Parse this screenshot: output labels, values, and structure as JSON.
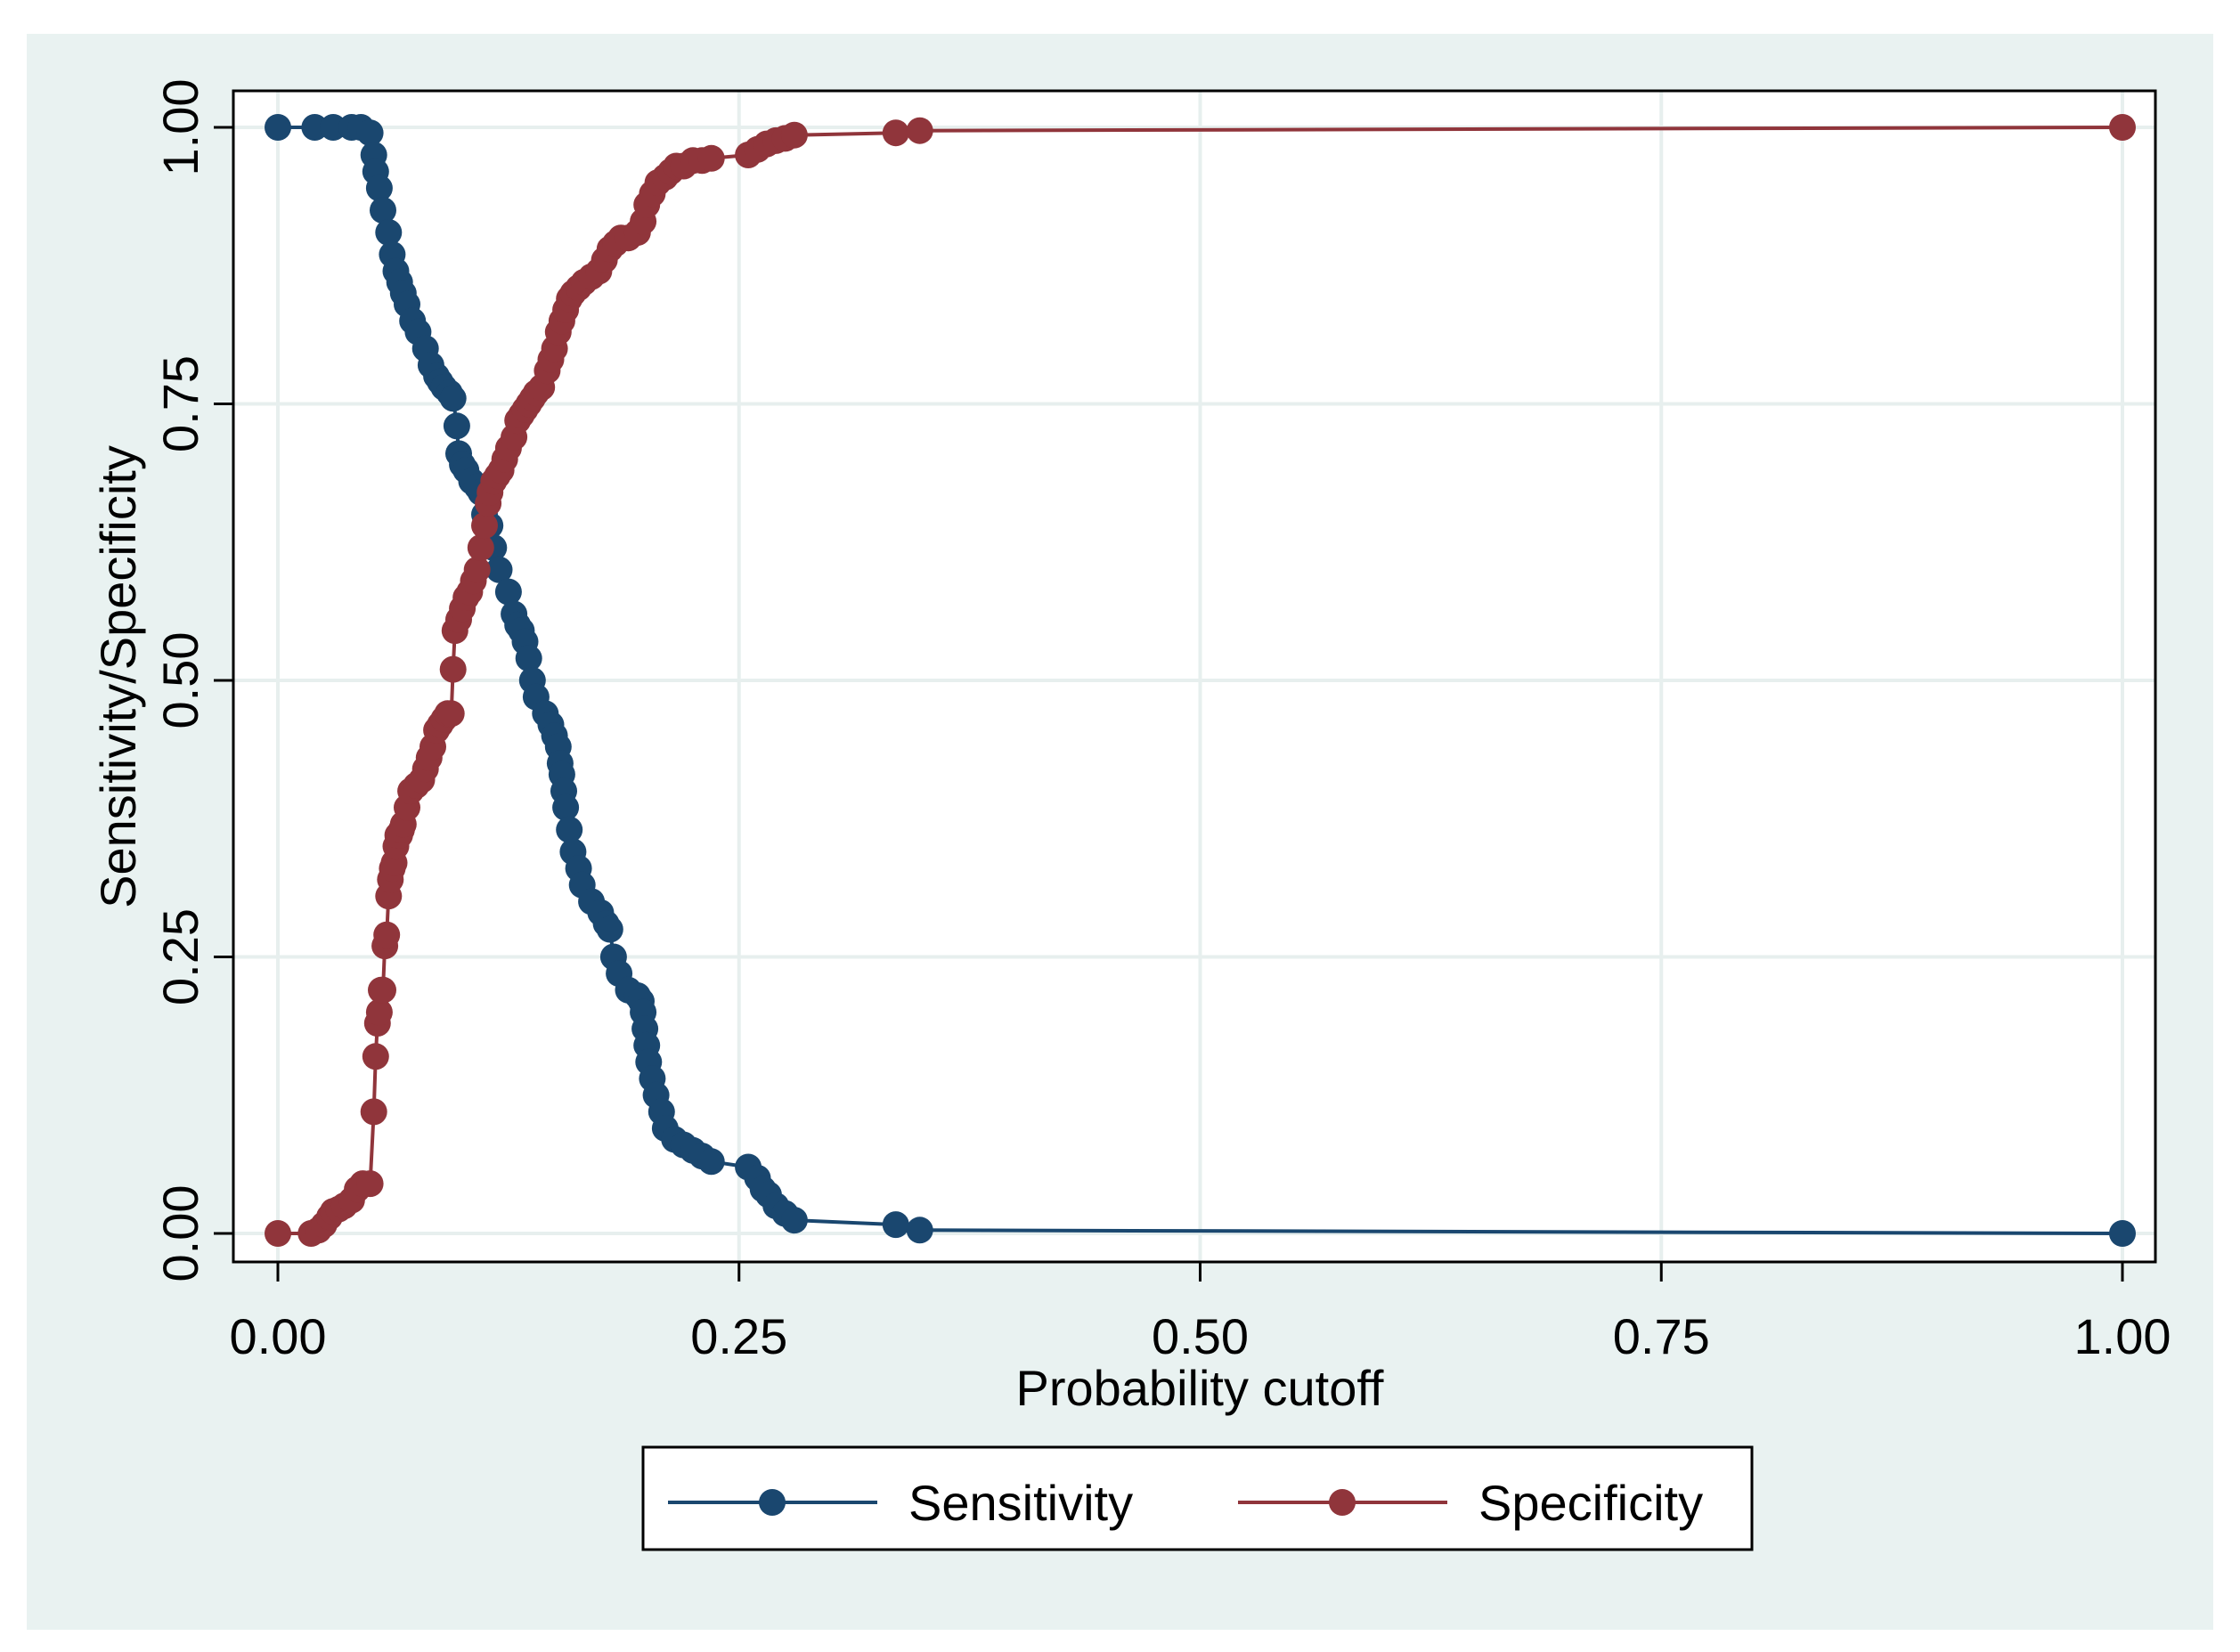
{
  "chart_data": {
    "type": "line",
    "title": "",
    "xlabel": "Probability cutoff",
    "ylabel": "Sensitivity/Specificity",
    "xlim": [
      0,
      1
    ],
    "ylim": [
      0,
      1
    ],
    "x_ticks": [
      "0.00",
      "0.25",
      "0.50",
      "0.75",
      "1.00"
    ],
    "y_ticks": [
      "0.00",
      "0.25",
      "0.50",
      "0.75",
      "1.00"
    ],
    "grid": true,
    "legend_position": "bottom",
    "series": [
      {
        "name": "Sensitivity",
        "color": "#1a476f",
        "marker": "circle",
        "x": [
          0.0,
          0.02,
          0.03,
          0.04,
          0.045,
          0.05,
          0.052,
          0.053,
          0.055,
          0.057,
          0.06,
          0.062,
          0.064,
          0.066,
          0.068,
          0.07,
          0.073,
          0.076,
          0.08,
          0.083,
          0.086,
          0.088,
          0.09,
          0.093,
          0.095,
          0.097,
          0.098,
          0.1,
          0.102,
          0.105,
          0.108,
          0.11,
          0.112,
          0.115,
          0.117,
          0.12,
          0.125,
          0.128,
          0.13,
          0.132,
          0.134,
          0.136,
          0.138,
          0.14,
          0.145,
          0.148,
          0.15,
          0.152,
          0.153,
          0.154,
          0.155,
          0.156,
          0.158,
          0.16,
          0.163,
          0.165,
          0.17,
          0.175,
          0.178,
          0.18,
          0.182,
          0.185,
          0.19,
          0.195,
          0.197,
          0.198,
          0.199,
          0.2,
          0.201,
          0.203,
          0.205,
          0.208,
          0.21,
          0.215,
          0.22,
          0.225,
          0.23,
          0.235,
          0.255,
          0.26,
          0.263,
          0.266,
          0.27,
          0.275,
          0.28,
          0.335,
          0.348,
          1.0
        ],
        "y": [
          1.0,
          1.0,
          1.0,
          1.0,
          1.0,
          0.995,
          0.975,
          0.96,
          0.945,
          0.925,
          0.905,
          0.885,
          0.87,
          0.86,
          0.85,
          0.84,
          0.825,
          0.815,
          0.8,
          0.785,
          0.775,
          0.77,
          0.765,
          0.76,
          0.755,
          0.73,
          0.705,
          0.695,
          0.69,
          0.68,
          0.675,
          0.67,
          0.65,
          0.64,
          0.62,
          0.6,
          0.58,
          0.56,
          0.55,
          0.545,
          0.535,
          0.52,
          0.5,
          0.485,
          0.47,
          0.46,
          0.45,
          0.44,
          0.425,
          0.415,
          0.4,
          0.385,
          0.365,
          0.345,
          0.33,
          0.315,
          0.3,
          0.29,
          0.28,
          0.275,
          0.25,
          0.235,
          0.22,
          0.215,
          0.21,
          0.2,
          0.185,
          0.17,
          0.155,
          0.14,
          0.125,
          0.11,
          0.095,
          0.085,
          0.08,
          0.075,
          0.07,
          0.065,
          0.06,
          0.05,
          0.04,
          0.035,
          0.025,
          0.018,
          0.012,
          0.008,
          0.003,
          0.0
        ]
      },
      {
        "name": "Specificity",
        "color": "#90353b",
        "marker": "circle",
        "x": [
          0.0,
          0.018,
          0.022,
          0.025,
          0.028,
          0.03,
          0.033,
          0.036,
          0.04,
          0.043,
          0.046,
          0.05,
          0.052,
          0.053,
          0.054,
          0.055,
          0.056,
          0.057,
          0.058,
          0.059,
          0.06,
          0.061,
          0.062,
          0.063,
          0.064,
          0.065,
          0.066,
          0.067,
          0.068,
          0.07,
          0.072,
          0.075,
          0.078,
          0.08,
          0.082,
          0.084,
          0.086,
          0.088,
          0.09,
          0.092,
          0.094,
          0.095,
          0.096,
          0.098,
          0.1,
          0.102,
          0.104,
          0.106,
          0.108,
          0.11,
          0.112,
          0.114,
          0.115,
          0.117,
          0.119,
          0.121,
          0.123,
          0.125,
          0.128,
          0.13,
          0.132,
          0.134,
          0.136,
          0.138,
          0.14,
          0.143,
          0.146,
          0.148,
          0.15,
          0.152,
          0.154,
          0.156,
          0.158,
          0.16,
          0.163,
          0.166,
          0.17,
          0.174,
          0.177,
          0.18,
          0.183,
          0.186,
          0.19,
          0.195,
          0.198,
          0.2,
          0.203,
          0.206,
          0.21,
          0.213,
          0.216,
          0.22,
          0.225,
          0.23,
          0.235,
          0.255,
          0.26,
          0.265,
          0.27,
          0.275,
          0.28,
          0.335,
          0.348,
          1.0
        ],
        "y": [
          0.0,
          0.0,
          0.003,
          0.008,
          0.015,
          0.02,
          0.022,
          0.025,
          0.03,
          0.04,
          0.045,
          0.045,
          0.11,
          0.16,
          0.19,
          0.2,
          0.22,
          0.22,
          0.26,
          0.27,
          0.305,
          0.32,
          0.33,
          0.335,
          0.35,
          0.36,
          0.36,
          0.365,
          0.37,
          0.385,
          0.4,
          0.405,
          0.41,
          0.42,
          0.43,
          0.44,
          0.455,
          0.46,
          0.465,
          0.47,
          0.47,
          0.51,
          0.545,
          0.555,
          0.565,
          0.575,
          0.58,
          0.59,
          0.6,
          0.62,
          0.64,
          0.66,
          0.67,
          0.68,
          0.685,
          0.69,
          0.7,
          0.71,
          0.72,
          0.735,
          0.74,
          0.745,
          0.75,
          0.755,
          0.76,
          0.765,
          0.78,
          0.79,
          0.8,
          0.815,
          0.825,
          0.835,
          0.845,
          0.85,
          0.855,
          0.86,
          0.865,
          0.87,
          0.88,
          0.89,
          0.895,
          0.9,
          0.9,
          0.905,
          0.915,
          0.93,
          0.94,
          0.95,
          0.955,
          0.96,
          0.965,
          0.965,
          0.97,
          0.97,
          0.972,
          0.975,
          0.98,
          0.985,
          0.988,
          0.99,
          0.993,
          0.995,
          0.997,
          1.0
        ]
      }
    ]
  }
}
